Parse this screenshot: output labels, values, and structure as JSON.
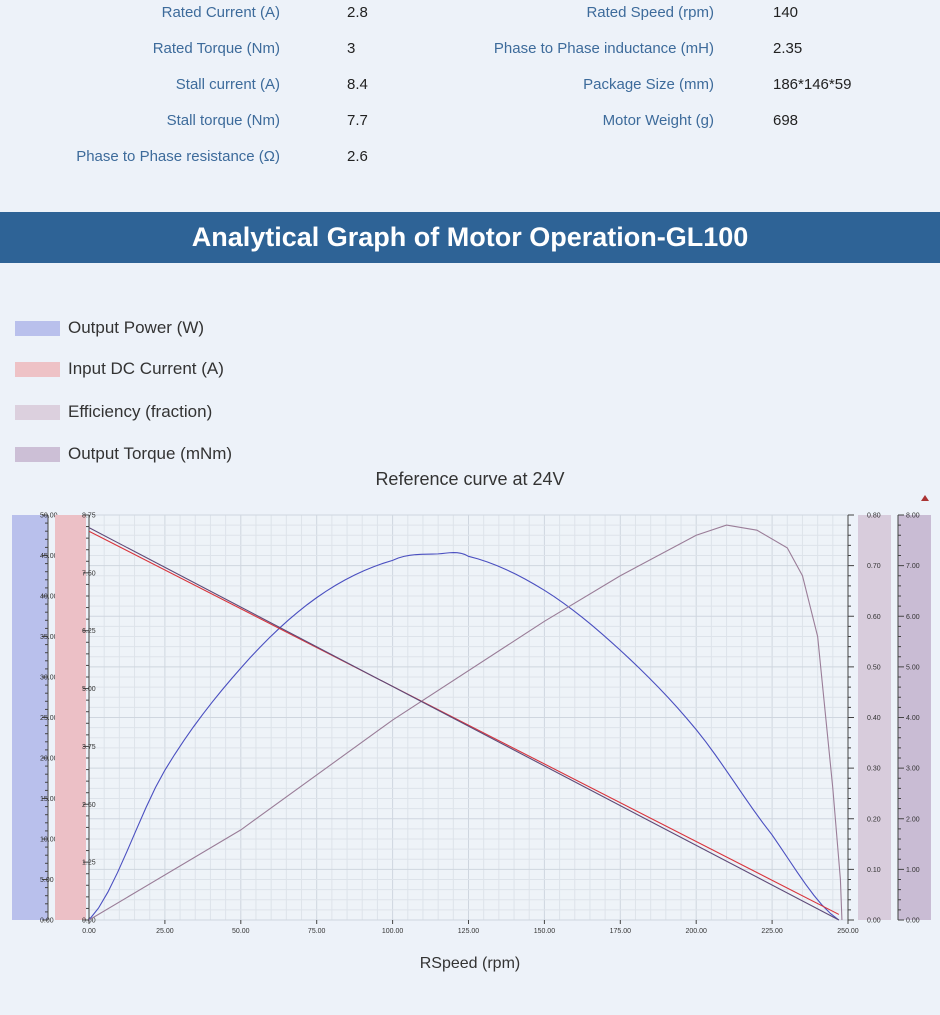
{
  "specs_left": [
    {
      "label": "Rated Current (A)",
      "value": "2.8"
    },
    {
      "label": "Rated  Torque (Nm)",
      "value": "3"
    },
    {
      "label": "Stall current (A)",
      "value": "8.4"
    },
    {
      "label": "Stall torque (Nm)",
      "value": "7.7"
    },
    {
      "label": "Phase to Phase resistance (Ω)",
      "value": "2.6"
    }
  ],
  "specs_right": [
    {
      "label": "Rated Speed (rpm)",
      "value": "140"
    },
    {
      "label": "Phase to Phase inductance (mH)",
      "value": "2.35"
    },
    {
      "label": "Package Size  (mm)",
      "value": "186*146*59"
    },
    {
      "label": "Motor Weight  (g)",
      "value": "698"
    }
  ],
  "banner": "Analytical Graph of Motor Operation-GL100",
  "chart_data": {
    "type": "line",
    "title": "Reference curve at 24V",
    "xlabel": "RSpeed (rpm)",
    "xlim": [
      0,
      250
    ],
    "xticks": [
      "0.00",
      "25.00",
      "50.00",
      "75.00",
      "100.00",
      "125.00",
      "150.00",
      "175.00",
      "200.00",
      "225.00",
      "250.00"
    ],
    "grid": true,
    "legend_position": "top-left",
    "axes": [
      {
        "id": "power",
        "range": [
          0,
          50
        ],
        "ticks": [
          "0.00",
          "5.00",
          "10.00",
          "15.00",
          "20.00",
          "25.00",
          "30.00",
          "35.00",
          "40.00",
          "45.00",
          "50.00"
        ],
        "side": "left",
        "band_color": "#b9c0ec"
      },
      {
        "id": "current",
        "range": [
          0,
          8.75
        ],
        "ticks": [
          "0.00",
          "1.25",
          "2.50",
          "3.75",
          "5.00",
          "6.25",
          "7.50",
          "8.75"
        ],
        "side": "left",
        "band_color": "#ecc0c6"
      },
      {
        "id": "efficiency",
        "range": [
          0,
          0.8
        ],
        "ticks": [
          "0.00",
          "0.10",
          "0.20",
          "0.30",
          "0.40",
          "0.50",
          "0.60",
          "0.70",
          "0.80"
        ],
        "side": "right",
        "band_color": "#d8ccdc"
      },
      {
        "id": "torque",
        "range": [
          0,
          8
        ],
        "ticks": [
          "0.00",
          "1.00",
          "2.00",
          "3.00",
          "4.00",
          "5.00",
          "6.00",
          "7.00",
          "8.00"
        ],
        "side": "right",
        "band_color": "#c9bcd4"
      }
    ],
    "series": [
      {
        "name": "Output Power (W)",
        "axis": "power",
        "color": "#4a4fc0",
        "swatch": "#b9c0ec",
        "x": [
          0,
          25,
          50,
          75,
          100,
          115,
          125,
          150,
          175,
          200,
          225,
          247
        ],
        "y": [
          0,
          18.5,
          31.1,
          39.8,
          44.4,
          45.2,
          44.9,
          40.7,
          33.3,
          23.5,
          10.5,
          0
        ]
      },
      {
        "name": "Input DC Current (A)",
        "axis": "current",
        "color": "#d9343c",
        "swatch": "#eec2c6",
        "x": [
          0,
          247
        ],
        "y": [
          8.4,
          0.12
        ]
      },
      {
        "name": "Efficiency (fraction)",
        "axis": "efficiency",
        "color": "#9a7d98",
        "swatch": "#dcd0de",
        "x": [
          0,
          50,
          100,
          150,
          175,
          200,
          210,
          220,
          230,
          235,
          240,
          245,
          247.5,
          248
        ],
        "y": [
          0,
          0.178,
          0.395,
          0.59,
          0.68,
          0.76,
          0.78,
          0.77,
          0.735,
          0.68,
          0.56,
          0.26,
          0.08,
          0
        ]
      },
      {
        "name": "Output Torque (mNm)",
        "axis": "torque",
        "color": "#5e4a78",
        "swatch": "#ccbfd6",
        "x": [
          0,
          247
        ],
        "y": [
          7.75,
          0
        ]
      }
    ]
  }
}
